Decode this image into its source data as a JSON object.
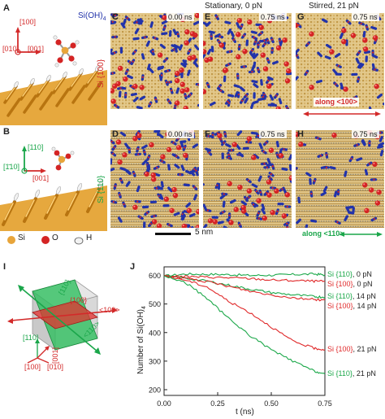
{
  "panels": {
    "A": "A",
    "B": "B",
    "C": "C",
    "D": "D",
    "E": "E",
    "F": "F",
    "G": "G",
    "H": "H",
    "I": "I",
    "J": "J"
  },
  "column_headers": {
    "stationary": "Stationary, 0 pN",
    "stirred": "Stirred, 21 pN"
  },
  "row_labels": {
    "top": "Si {100}",
    "bottom": "Si {110}"
  },
  "snapshot_times": {
    "C": "0.00 ns",
    "E": "0.75 ns",
    "G": "0.75 ns",
    "D": "0.00 ns",
    "F": "0.75 ns",
    "H": "0.75 ns"
  },
  "direction_labels": {
    "G": "along <100>",
    "H": "along <110>"
  },
  "scale_bar": "5 nm",
  "panel_A": {
    "axis_up": "[100]",
    "axis_left": "[010]",
    "axis_right": "[001]",
    "molecule": "Si(OH)",
    "molecule_sub": "4"
  },
  "panel_B": {
    "axis_up": "[110]",
    "axis_left": "[1̄10]",
    "axis_right": "[001]"
  },
  "legend": {
    "si": "Si",
    "o": "O",
    "h": "H"
  },
  "panel_I": {
    "plane_110": "{110}",
    "plane_100": "{100}",
    "dir_100": "<100>",
    "dir_110": "<110>",
    "ax_110": "[110]",
    "ax_001": "[001]",
    "ax_100": "[100]",
    "ax_010": "[010]"
  },
  "colors": {
    "si": "#e8a53a",
    "oxygen": "#d42424",
    "hydrogen": "#e9e9e9",
    "dissolved": "#2233aa",
    "red_series": "#e0292a",
    "green_series": "#1ca84a"
  },
  "chart_data": {
    "type": "line",
    "title": "",
    "xlabel": "t (ns)",
    "ylabel": "Number of Si(OH)4",
    "xlim": [
      0.0,
      0.75
    ],
    "ylim": [
      180,
      630
    ],
    "xticks": [
      "0.00",
      "0.25",
      "0.50",
      "0.75"
    ],
    "yticks": [
      "200",
      "300",
      "400",
      "500",
      "600"
    ],
    "grid": false,
    "series": [
      {
        "name": "Si {110}, 0 pN",
        "color": "green",
        "x": [
          0,
          0.1,
          0.2,
          0.3,
          0.4,
          0.5,
          0.6,
          0.7,
          0.75
        ],
        "y": [
          598,
          605,
          604,
          603,
          600,
          601,
          603,
          605,
          602
        ]
      },
      {
        "name": "Si {100}, 0 pN",
        "color": "red",
        "x": [
          0,
          0.1,
          0.2,
          0.3,
          0.4,
          0.5,
          0.6,
          0.7,
          0.75
        ],
        "y": [
          598,
          596,
          594,
          592,
          589,
          584,
          582,
          580,
          579
        ]
      },
      {
        "name": "Si {110}, 14 pN",
        "color": "green",
        "x": [
          0,
          0.1,
          0.2,
          0.3,
          0.4,
          0.5,
          0.6,
          0.7,
          0.75
        ],
        "y": [
          598,
          590,
          580,
          566,
          552,
          540,
          532,
          526,
          524
        ]
      },
      {
        "name": "Si {100}, 14 pN",
        "color": "red",
        "x": [
          0,
          0.1,
          0.2,
          0.3,
          0.4,
          0.5,
          0.6,
          0.7,
          0.75
        ],
        "y": [
          598,
          590,
          578,
          562,
          545,
          532,
          522,
          516,
          514
        ]
      },
      {
        "name": "Si {100}, 21 pN",
        "color": "red",
        "x": [
          0,
          0.1,
          0.2,
          0.3,
          0.4,
          0.5,
          0.6,
          0.7,
          0.75
        ],
        "y": [
          598,
          584,
          560,
          510,
          470,
          420,
          370,
          345,
          340
        ]
      },
      {
        "name": "Si {110}, 21 pN",
        "color": "green",
        "x": [
          0,
          0.1,
          0.2,
          0.3,
          0.4,
          0.5,
          0.6,
          0.7,
          0.75
        ],
        "y": [
          598,
          575,
          520,
          450,
          390,
          340,
          300,
          265,
          255
        ]
      }
    ]
  }
}
